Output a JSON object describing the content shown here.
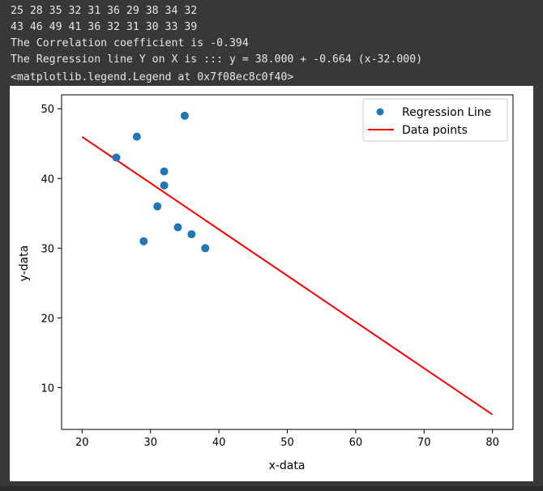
{
  "output": {
    "lines": [
      "25 28 35 32 31 36 29 38 34 32",
      "43 46 49 41 36 32 31 30 33 39",
      "The Correlation coefficient is -0.394",
      "The Regression line Y on X is ::: y = 38.000 + -0.664 (x-32.000)",
      "<matplotlib.legend.Legend at 0x7f08ec8c0f40>"
    ]
  },
  "colors": {
    "background": "#383838",
    "text": "#e6e6e6",
    "points": "#1f77b4",
    "line": "#ff0000"
  },
  "chart_data": {
    "type": "scatter",
    "title": "",
    "xlabel": "x-data",
    "ylabel": "y-data",
    "xlim": [
      17,
      83
    ],
    "ylim": [
      4,
      52
    ],
    "xticks": [
      20,
      30,
      40,
      50,
      60,
      70,
      80
    ],
    "yticks": [
      10,
      20,
      30,
      40,
      50
    ],
    "grid": false,
    "legend_position": "top-right",
    "series": [
      {
        "name": "Regression Line",
        "kind": "scatter",
        "color": "#1f77b4",
        "points": [
          {
            "x": 25,
            "y": 43
          },
          {
            "x": 28,
            "y": 46
          },
          {
            "x": 35,
            "y": 49
          },
          {
            "x": 32,
            "y": 41
          },
          {
            "x": 31,
            "y": 36
          },
          {
            "x": 36,
            "y": 32
          },
          {
            "x": 29,
            "y": 31
          },
          {
            "x": 38,
            "y": 30
          },
          {
            "x": 34,
            "y": 33
          },
          {
            "x": 32,
            "y": 39
          }
        ]
      },
      {
        "name": "Data points",
        "kind": "line",
        "color": "#ff0000",
        "points": [
          {
            "x": 20,
            "y": 45.97
          },
          {
            "x": 80,
            "y": 6.13
          }
        ]
      }
    ]
  }
}
